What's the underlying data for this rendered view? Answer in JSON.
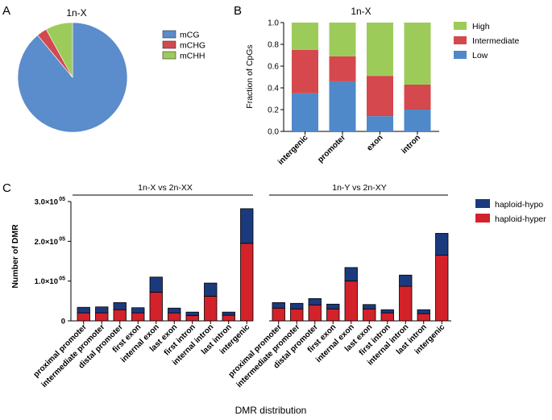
{
  "panels": {
    "a": "A",
    "b": "B",
    "c": "C"
  },
  "chart_data": [
    {
      "id": "A",
      "type": "pie",
      "title": "1n-X",
      "slices": [
        {
          "label": "mCG",
          "value": 89,
          "color": "#5B8CCB"
        },
        {
          "label": "mCHG",
          "value": 3,
          "color": "#D2494F"
        },
        {
          "label": "mCHH",
          "value": 8,
          "color": "#9DCB5A"
        }
      ]
    },
    {
      "id": "B",
      "type": "bar",
      "stacked": true,
      "title": "1n-X",
      "ylabel": "Fraction of CpGs",
      "xlabel": "",
      "ylim": [
        0,
        1.0
      ],
      "yticks": [
        "0.0",
        "0.2",
        "0.4",
        "0.6",
        "0.8",
        "1.0"
      ],
      "categories": [
        "intergenic",
        "promoter",
        "exon",
        "intron"
      ],
      "series": [
        {
          "name": "Low",
          "color": "#4F89C9",
          "values": [
            0.35,
            0.46,
            0.14,
            0.2
          ]
        },
        {
          "name": "Intermediate",
          "color": "#D4484E",
          "values": [
            0.4,
            0.23,
            0.37,
            0.23
          ]
        },
        {
          "name": "High",
          "color": "#9DCB5A",
          "values": [
            0.25,
            0.31,
            0.49,
            0.57
          ]
        }
      ],
      "legend": [
        "High",
        "Intermediate",
        "Low"
      ]
    },
    {
      "id": "C",
      "type": "bar",
      "stacked": true,
      "title": "",
      "ylabel": "Number of DMR",
      "xlabel": "DMR distribution",
      "ylim": [
        0,
        300000
      ],
      "ytick_labels": {
        "y0": "0",
        "y1": "1.0×10",
        "y2": "2.0×10",
        "y3": "3.0×10",
        "exp": "05"
      },
      "groups": [
        "1n-X vs 2n-XX",
        "1n-Y vs 2n-XY"
      ],
      "categories": [
        "proximal promoter",
        "intermediate promoter",
        "distal promoter",
        "first exon",
        "internal exon",
        "last exon",
        "first intron",
        "internal intron",
        "last intron",
        "intergenic"
      ],
      "series": [
        {
          "name": "haploid-hyper",
          "color": "#D3222A",
          "group1": [
            20000,
            20000,
            28000,
            20000,
            72000,
            20000,
            13000,
            62000,
            14000,
            195000
          ],
          "group2": [
            32000,
            30000,
            40000,
            30000,
            100000,
            30000,
            20000,
            87000,
            18000,
            165000
          ]
        },
        {
          "name": "haploid-hypo",
          "color": "#1B3A7E",
          "group1": [
            14000,
            15000,
            18000,
            13000,
            38000,
            12000,
            9000,
            33000,
            8000,
            87000
          ],
          "group2": [
            14000,
            14000,
            16000,
            12000,
            34000,
            11000,
            8000,
            28000,
            10000,
            55000
          ]
        }
      ],
      "legend": [
        "haploid-hypo",
        "haploid-hyper"
      ]
    }
  ]
}
